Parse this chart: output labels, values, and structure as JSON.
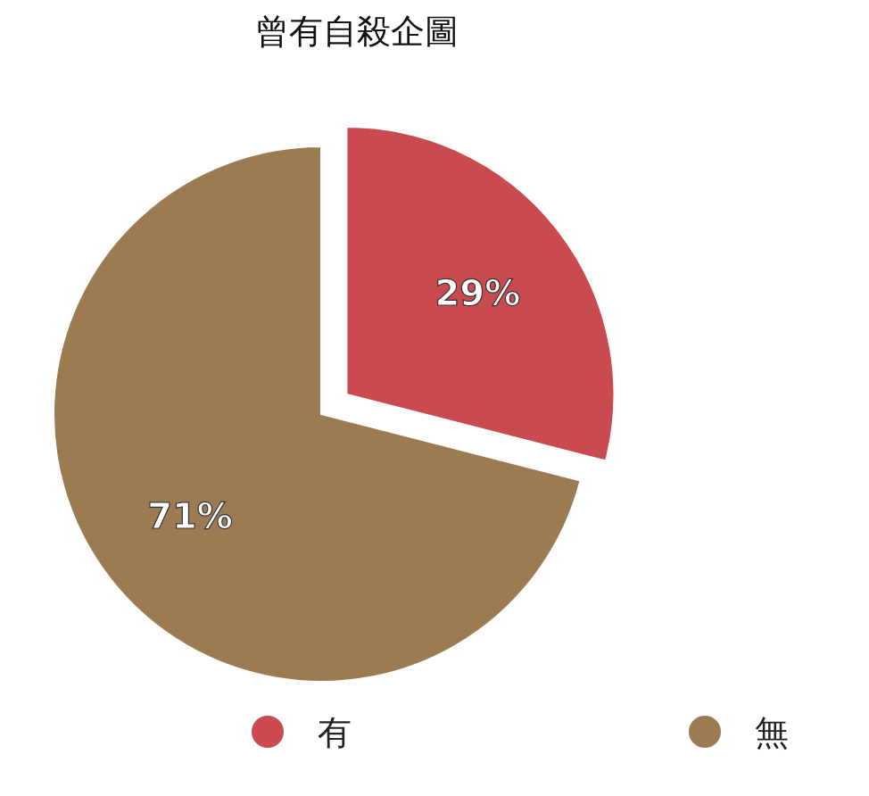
{
  "chart_data": {
    "type": "pie",
    "title": "曾有自殺企圖",
    "categories": [
      "有",
      "無"
    ],
    "values": [
      29,
      71
    ],
    "colors": [
      "#c94a4f",
      "#9c7b52"
    ],
    "value_labels": [
      "29%",
      "71%"
    ],
    "legend": "bottom"
  }
}
